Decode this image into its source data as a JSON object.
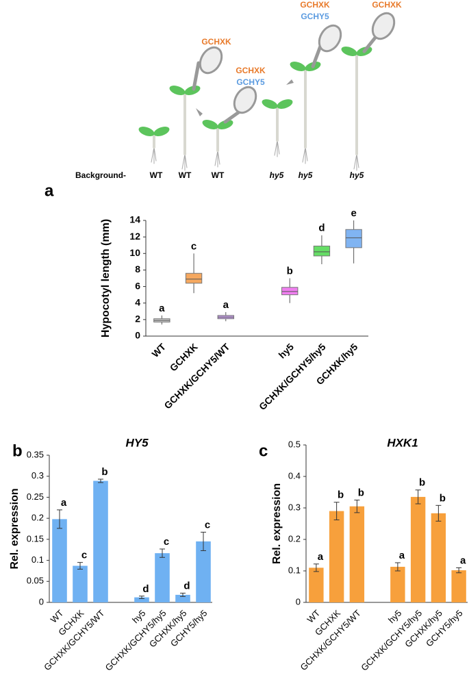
{
  "diagram": {
    "labels": [
      "GCHXK",
      "GCHXK",
      "GCHY5",
      "GCHXK",
      "GCHY5",
      "GCHXK"
    ],
    "background": {
      "label": "Background-",
      "genotypes": [
        "WT",
        "WT",
        "WT",
        "hy5",
        "hy5",
        "hy5"
      ]
    }
  },
  "chart_data": [
    {
      "type": "box",
      "panel": "a",
      "ylabel": "Hypocotyl length (mm)",
      "categories": [
        "WT",
        "GCHXK",
        "GCHXK/GCHY5/WT",
        null,
        "hy5",
        "GCHXK/GCHY5/hy5",
        "GCHXK/hy5"
      ],
      "min": [
        1.4,
        5.2,
        1.8,
        null,
        4.0,
        8.7,
        8.8
      ],
      "q1": [
        1.7,
        6.4,
        2.1,
        null,
        5.0,
        9.7,
        10.7
      ],
      "median": [
        1.9,
        6.9,
        2.3,
        null,
        5.4,
        10.2,
        11.9
      ],
      "q3": [
        2.1,
        7.6,
        2.5,
        null,
        5.9,
        10.9,
        12.9
      ],
      "max": [
        2.5,
        10.0,
        2.9,
        null,
        7.0,
        12.2,
        14.0
      ],
      "colors": [
        "#c8c8c8",
        "#f5a860",
        "#c9a0ec",
        null,
        "#f07ff0",
        "#66dd66",
        "#80b4f2"
      ],
      "annotations": [
        "a",
        "c",
        "a",
        null,
        "b",
        "d",
        "e"
      ],
      "ylim": [
        0,
        14
      ],
      "yticks": [
        0,
        2,
        4,
        6,
        8,
        10,
        12,
        14
      ]
    },
    {
      "type": "bar",
      "panel": "b",
      "title": "HY5",
      "ylabel": "Rel. expression",
      "categories": [
        "WT",
        "GCHXK",
        "GCHXK/GCHY5/WT",
        null,
        "hy5",
        "GCHXK/GCHY5/hy5",
        "GCHXK/hy5",
        "GCHY5/hy5"
      ],
      "values": [
        0.198,
        0.087,
        0.289,
        null,
        0.012,
        0.117,
        0.018,
        0.145
      ],
      "errors": [
        0.022,
        0.008,
        0.004,
        null,
        0.003,
        0.01,
        0.004,
        0.022
      ],
      "annotations": [
        "a",
        "c",
        "b",
        null,
        "d",
        "c",
        "d",
        "c"
      ],
      "color": "#6fb1f2",
      "ylim": [
        0,
        0.35
      ],
      "yticks": [
        0,
        0.05,
        0.1,
        0.15,
        0.2,
        0.25,
        0.3,
        0.35
      ]
    },
    {
      "type": "bar",
      "panel": "c",
      "title": "HXK1",
      "ylabel": "Rel. expression",
      "categories": [
        "WT",
        "GCHXK",
        "GCHXK/GCHY5/WT",
        null,
        "hy5",
        "GCHXK/GCHY5/hy5",
        "GCHXK/hy5",
        "GCHY5/hy5"
      ],
      "values": [
        0.11,
        0.29,
        0.305,
        null,
        0.113,
        0.335,
        0.283,
        0.102
      ],
      "errors": [
        0.012,
        0.028,
        0.02,
        null,
        0.013,
        0.022,
        0.025,
        0.008
      ],
      "annotations": [
        "a",
        "b",
        "b",
        null,
        "a",
        "b",
        "b",
        "a"
      ],
      "color": "#f7a03c",
      "ylim": [
        0,
        0.5
      ],
      "yticks": [
        0,
        0.1,
        0.2,
        0.3,
        0.4,
        0.5
      ]
    }
  ]
}
